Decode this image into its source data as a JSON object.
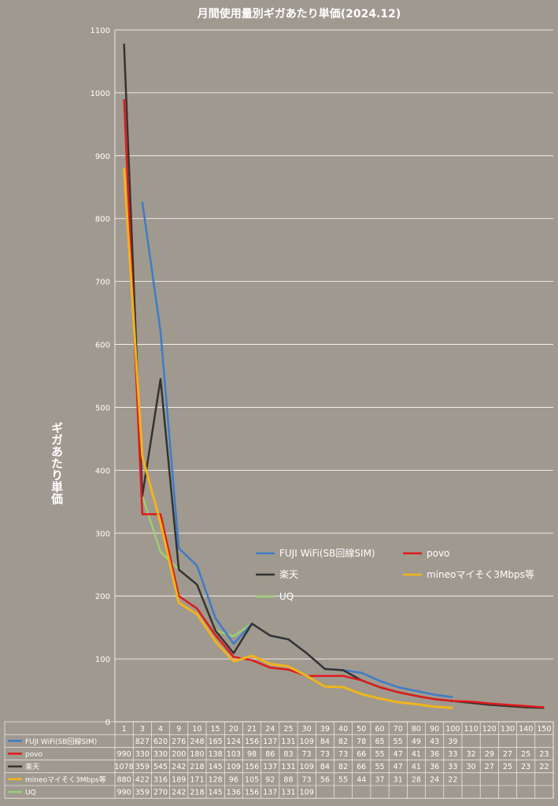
{
  "chart_data": {
    "type": "line",
    "title": "月間使用量別ギガあたり単価(2024.12)",
    "xlabel": "",
    "ylabel": "ギガあたり単価",
    "ylim": [
      0,
      1100
    ],
    "yticks": [
      0,
      100,
      200,
      300,
      400,
      500,
      600,
      700,
      800,
      900,
      1000,
      1100
    ],
    "grid": true,
    "legend_position": "center-right",
    "categories": [
      "1",
      "3",
      "4",
      "9",
      "10",
      "15",
      "20",
      "21",
      "24",
      "25",
      "30",
      "39",
      "40",
      "50",
      "60",
      "70",
      "80",
      "90",
      "100",
      "110",
      "120",
      "130",
      "140",
      "150"
    ],
    "series": [
      {
        "name": "FUJI WiFi(SB回線SIM)",
        "color": "#3d7cc7",
        "values": [
          null,
          827,
          620,
          276,
          248,
          165,
          124,
          156,
          137,
          131,
          109,
          84,
          82,
          78,
          65,
          55,
          49,
          43,
          39,
          null,
          null,
          null,
          null,
          null
        ]
      },
      {
        "name": "povo",
        "color": "#e01a1a",
        "values": [
          990,
          330,
          330,
          200,
          180,
          138,
          103,
          98,
          86,
          83,
          73,
          73,
          73,
          66,
          55,
          47,
          41,
          36,
          33,
          32,
          29,
          27,
          25,
          23
        ]
      },
      {
        "name": "楽天",
        "color": "#333333",
        "values": [
          1078,
          359,
          545,
          242,
          218,
          145,
          109,
          156,
          137,
          131,
          109,
          84,
          82,
          66,
          55,
          47,
          41,
          36,
          33,
          30,
          27,
          25,
          23,
          22
        ]
      },
      {
        "name": "mineoマイそく3Mbps等",
        "color": "#f2b41c",
        "values": [
          880,
          422,
          316,
          189,
          171,
          128,
          96,
          105,
          92,
          88,
          73,
          56,
          55,
          44,
          37,
          31,
          28,
          24,
          22,
          null,
          null,
          null,
          null,
          null
        ]
      },
      {
        "name": "UQ",
        "color": "#9ccf74",
        "values": [
          990,
          359,
          270,
          242,
          218,
          145,
          136,
          156,
          137,
          131,
          109,
          null,
          null,
          null,
          null,
          null,
          null,
          null,
          null,
          null,
          null,
          null,
          null,
          null
        ]
      }
    ]
  }
}
